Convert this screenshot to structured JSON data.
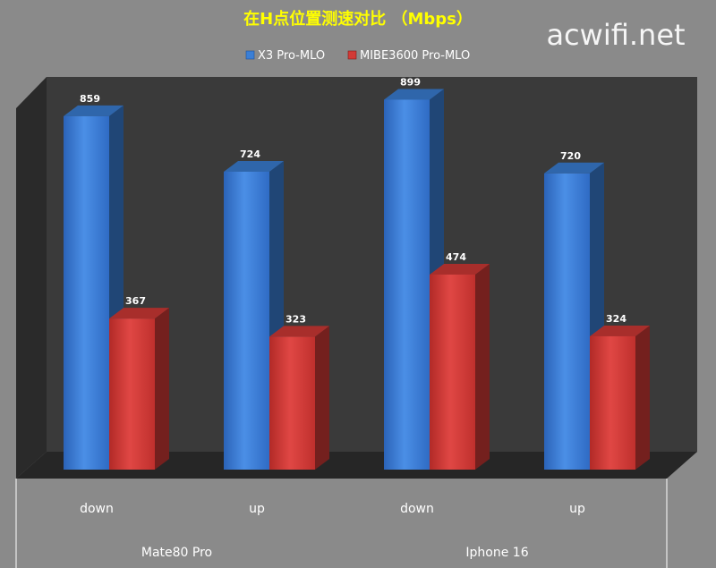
{
  "chart_data": {
    "type": "bar",
    "title": "在H点位置测速对比 （Mbps）",
    "watermark": "acwifi.net",
    "categories": [
      "down",
      "up",
      "down",
      "up"
    ],
    "groups": [
      {
        "label": "Mate80 Pro",
        "categories": [
          "down",
          "up"
        ]
      },
      {
        "label": "Iphone 16",
        "categories": [
          "down",
          "up"
        ]
      }
    ],
    "series": [
      {
        "name": "X3 Pro-MLO",
        "values": [
          859,
          724,
          899,
          720
        ],
        "color": "#3b7fd6"
      },
      {
        "name": "MIBE3600 Pro-MLO",
        "values": [
          367,
          323,
          474,
          324
        ],
        "color": "#d23a36"
      }
    ],
    "ylim": [
      0,
      1000
    ],
    "legend_position": "top-center",
    "grid": false,
    "colors": {
      "title": "#ffff00",
      "background": "#8a8a8a",
      "plot_back": "#3a3a3a",
      "plot_side": "#2a2a2a",
      "floor": "#262626"
    }
  }
}
